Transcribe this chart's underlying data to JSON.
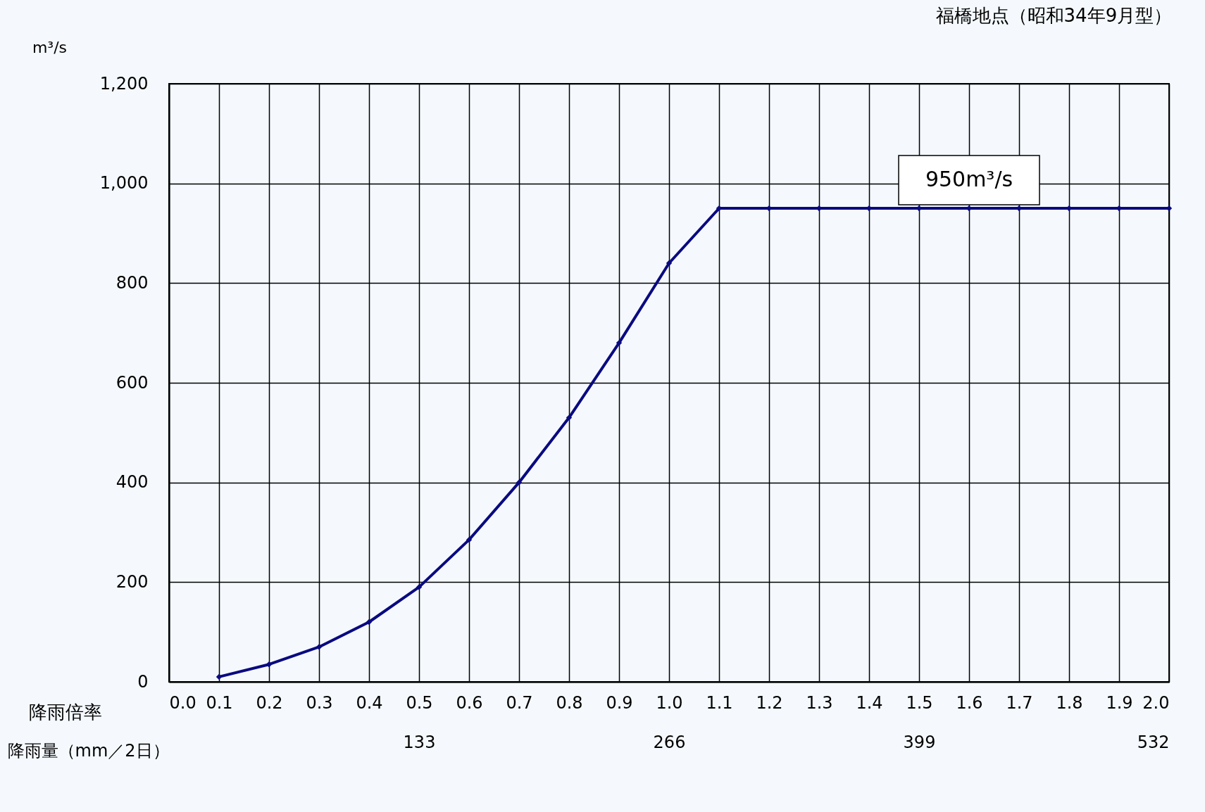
{
  "chart_data": {
    "type": "line",
    "title": "福橋地点（昭和34年9月型）",
    "xlabel": "降雨倍率",
    "ylabel": "m³/s",
    "x2label": "降雨量（mm／2日）",
    "x": [
      0.1,
      0.2,
      0.3,
      0.4,
      0.5,
      0.6,
      0.7,
      0.8,
      0.9,
      1.0,
      1.1,
      1.2,
      1.3,
      1.4,
      1.5,
      1.6,
      1.7,
      1.8,
      1.9,
      2.0
    ],
    "series": [
      {
        "color": "#0a0a80",
        "values": [
          10,
          35,
          70,
          120,
          190,
          285,
          400,
          530,
          680,
          840,
          950,
          950,
          950,
          950,
          950,
          950,
          950,
          950,
          950,
          950
        ]
      }
    ],
    "xlim": [
      0,
      2.0
    ],
    "xticks": [
      {
        "value": 0,
        "label": "0.0"
      },
      0.1,
      0.2,
      0.3,
      0.4,
      0.5,
      0.6,
      0.7,
      0.8,
      0.9,
      {
        "value": 1,
        "label": "1.0"
      },
      1.1,
      1.2,
      1.3,
      1.4,
      1.5,
      1.6,
      1.7,
      1.8,
      1.9,
      {
        "value": 2,
        "label": "2.0"
      }
    ],
    "ylim": [
      0,
      1200
    ],
    "yticks": [
      0,
      200,
      400,
      600,
      800,
      {
        "value": 1000,
        "label": "1,000"
      },
      {
        "value": 1200,
        "label": "1,200"
      }
    ],
    "x2lim": [
      0,
      532
    ],
    "x2ticks": [
      133,
      266,
      399,
      532
    ],
    "annotations": [
      {
        "text": "950m³/s",
        "x": 1.6,
        "y": 950
      }
    ],
    "grid": true,
    "marker": "diamond",
    "line_style": "solid"
  }
}
